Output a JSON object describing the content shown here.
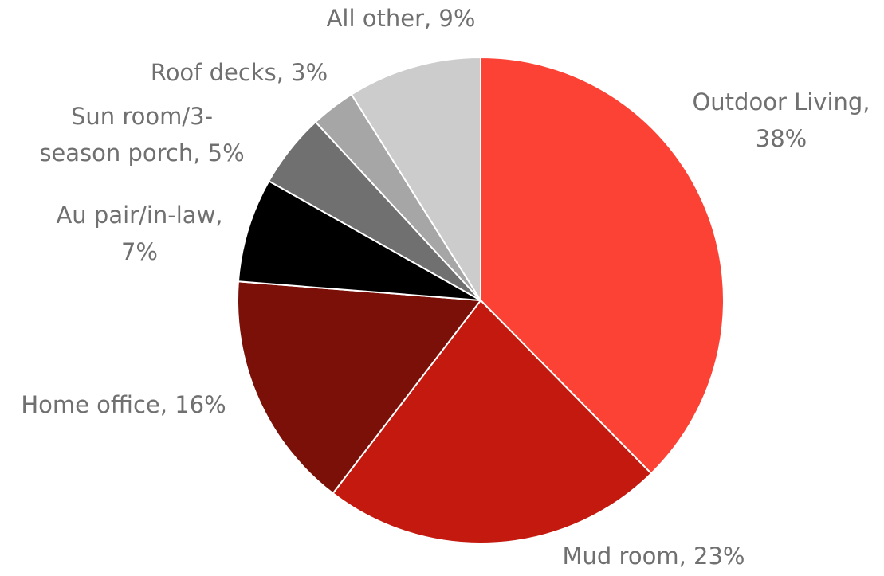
{
  "chart_data": {
    "type": "pie",
    "labels": [
      [
        "Outdoor Living,",
        "38%"
      ],
      [
        "Mud room, 23%"
      ],
      [
        "Home office, 16%"
      ],
      [
        "Au pair/in-law,",
        "7%"
      ],
      [
        "Sun room/3-",
        "season porch, 5%"
      ],
      [
        "Roof decks, 3%"
      ],
      [
        "All other, 9%"
      ]
    ],
    "values": [
      38,
      23,
      16,
      7,
      5,
      3,
      9
    ],
    "colors": [
      "#fb4235",
      "#c3190f",
      "#7a1008",
      "#000000",
      "#707070",
      "#a6a6a6",
      "#cccccc"
    ]
  }
}
